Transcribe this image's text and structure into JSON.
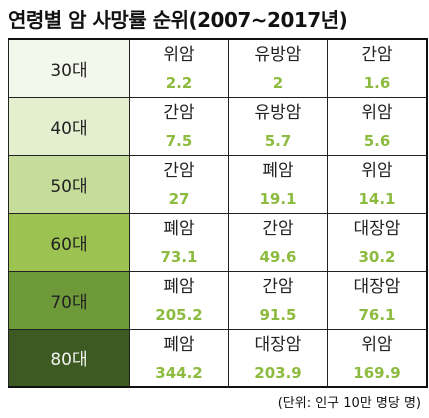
{
  "title": "연령별 암 사망률 순위(2007~2017년)",
  "footnote": "(단위: 인구 10만 명당 명)",
  "colors": {
    "value_text": "#8dbb3f",
    "age_backgrounds": [
      "#f4f8ec",
      "#e3efcf",
      "#c5dc9a",
      "#9cc352",
      "#6f9a3a",
      "#3d5a22"
    ]
  },
  "rows": [
    {
      "age": "30대",
      "entries": [
        {
          "cancer": "위암",
          "value": "2.2"
        },
        {
          "cancer": "유방암",
          "value": "2"
        },
        {
          "cancer": "간암",
          "value": "1.6"
        }
      ]
    },
    {
      "age": "40대",
      "entries": [
        {
          "cancer": "간암",
          "value": "7.5"
        },
        {
          "cancer": "유방암",
          "value": "5.7"
        },
        {
          "cancer": "위암",
          "value": "5.6"
        }
      ]
    },
    {
      "age": "50대",
      "entries": [
        {
          "cancer": "간암",
          "value": "27"
        },
        {
          "cancer": "폐암",
          "value": "19.1"
        },
        {
          "cancer": "위암",
          "value": "14.1"
        }
      ]
    },
    {
      "age": "60대",
      "entries": [
        {
          "cancer": "폐암",
          "value": "73.1"
        },
        {
          "cancer": "간암",
          "value": "49.6"
        },
        {
          "cancer": "대장암",
          "value": "30.2"
        }
      ]
    },
    {
      "age": "70대",
      "entries": [
        {
          "cancer": "폐암",
          "value": "205.2"
        },
        {
          "cancer": "간암",
          "value": "91.5"
        },
        {
          "cancer": "대장암",
          "value": "76.1"
        }
      ]
    },
    {
      "age": "80대",
      "entries": [
        {
          "cancer": "폐암",
          "value": "344.2"
        },
        {
          "cancer": "대장암",
          "value": "203.9"
        },
        {
          "cancer": "위암",
          "value": "169.9"
        }
      ]
    }
  ]
}
